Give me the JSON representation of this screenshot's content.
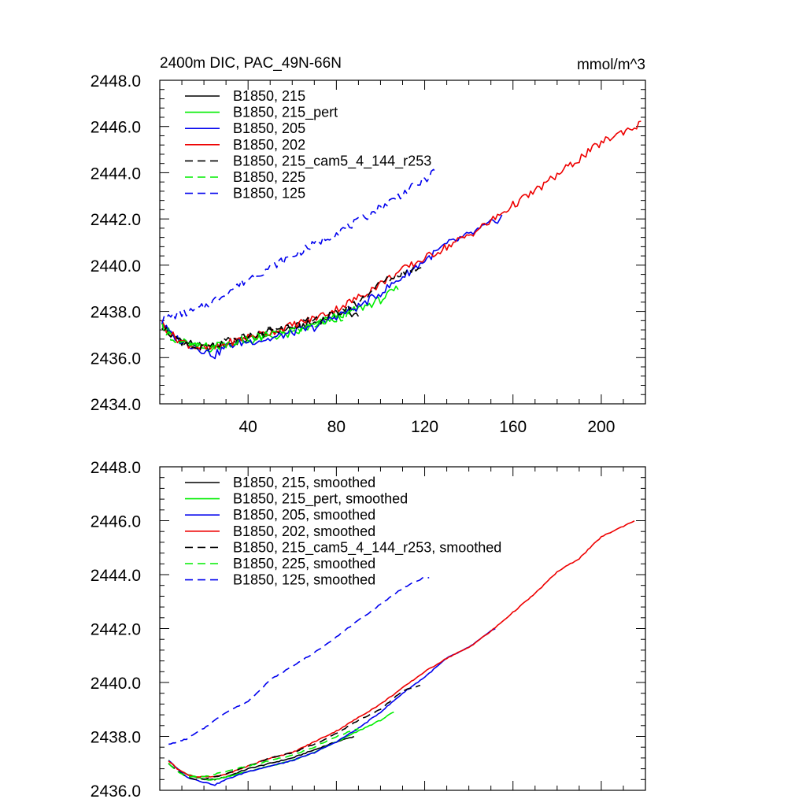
{
  "chart_data": [
    {
      "type": "line",
      "title": "2400m DIC, PAC_49N-66N",
      "units": "mmol/m^3",
      "xlim": [
        0,
        220
      ],
      "ylim": [
        2434,
        2448
      ],
      "x_major_ticks": [
        40,
        80,
        120,
        160,
        200
      ],
      "y_major_ticks": [
        2434,
        2436,
        2438,
        2440,
        2442,
        2444,
        2446,
        2448
      ],
      "x_tick_labels": [
        "40",
        "80",
        "120",
        "160",
        "200"
      ],
      "y_tick_labels": [
        "2434.0",
        "2436.0",
        "2438.0",
        "2440.0",
        "2442.0",
        "2444.0",
        "2446.0",
        "2448.0"
      ],
      "grid": false,
      "legend_position": "top-left",
      "series": [
        {
          "name": "B1850, 215",
          "color": "#000000",
          "dash": "solid",
          "noisy": true,
          "x": [
            1,
            5,
            10,
            15,
            20,
            25,
            30,
            40,
            50,
            60,
            70,
            80,
            90
          ],
          "y": [
            2437.5,
            2437.0,
            2436.7,
            2436.6,
            2436.4,
            2436.5,
            2436.6,
            2436.8,
            2437.1,
            2437.3,
            2437.5,
            2437.9,
            2437.9
          ]
        },
        {
          "name": "B1850, 215_pert",
          "color": "#00ee00",
          "dash": "solid",
          "noisy": true,
          "x": [
            1,
            5,
            10,
            15,
            20,
            25,
            30,
            40,
            50,
            60,
            70,
            80,
            90,
            100,
            108
          ],
          "y": [
            2437.5,
            2437.0,
            2436.7,
            2436.5,
            2436.4,
            2436.4,
            2436.6,
            2436.7,
            2436.9,
            2437.0,
            2437.4,
            2437.8,
            2438.1,
            2438.5,
            2439.0
          ]
        },
        {
          "name": "B1850, 205",
          "color": "#0000ee",
          "dash": "solid",
          "noisy": true,
          "x": [
            1,
            5,
            10,
            15,
            20,
            25,
            30,
            40,
            50,
            60,
            70,
            80,
            90,
            100,
            110,
            120,
            130,
            140,
            150,
            155
          ],
          "y": [
            2437.5,
            2437.0,
            2436.7,
            2436.5,
            2436.3,
            2436.1,
            2436.5,
            2436.7,
            2436.8,
            2437.1,
            2437.3,
            2437.8,
            2438.2,
            2438.8,
            2439.5,
            2440.2,
            2440.9,
            2441.3,
            2441.8,
            2442.1
          ]
        },
        {
          "name": "B1850, 202",
          "color": "#ee0000",
          "dash": "solid",
          "noisy": true,
          "x": [
            1,
            5,
            10,
            15,
            20,
            25,
            30,
            40,
            50,
            60,
            70,
            80,
            90,
            100,
            110,
            120,
            130,
            140,
            150,
            160,
            170,
            180,
            190,
            200,
            210,
            218
          ],
          "y": [
            2437.5,
            2437.0,
            2436.7,
            2436.5,
            2436.4,
            2436.4,
            2436.6,
            2436.9,
            2437.1,
            2437.4,
            2437.7,
            2438.1,
            2438.6,
            2439.2,
            2439.8,
            2440.3,
            2440.8,
            2441.3,
            2441.9,
            2442.6,
            2443.2,
            2443.9,
            2444.6,
            2445.3,
            2445.8,
            2446.1
          ]
        },
        {
          "name": "B1850, 215_cam5_4_144_r253",
          "color": "#000000",
          "dash": "dashed",
          "noisy": true,
          "x": [
            1,
            5,
            10,
            15,
            20,
            25,
            30,
            40,
            50,
            60,
            70,
            80,
            90,
            100,
            110,
            120
          ],
          "y": [
            2437.4,
            2437.0,
            2436.6,
            2436.4,
            2436.4,
            2436.5,
            2436.7,
            2436.9,
            2437.2,
            2437.4,
            2437.6,
            2437.9,
            2438.4,
            2439.2,
            2439.7,
            2440.0
          ]
        },
        {
          "name": "B1850, 225",
          "color": "#00ee00",
          "dash": "dashed",
          "noisy": true,
          "x": [
            1,
            5,
            10,
            15,
            20,
            25,
            30,
            40,
            50,
            60,
            70,
            80,
            88
          ],
          "y": [
            2437.4,
            2436.9,
            2436.6,
            2436.5,
            2436.5,
            2436.5,
            2436.6,
            2436.8,
            2437.0,
            2437.2,
            2437.4,
            2437.7,
            2437.9
          ]
        },
        {
          "name": "B1850, 125",
          "color": "#0000ee",
          "dash": "dashed",
          "noisy": true,
          "x": [
            1,
            5,
            10,
            15,
            20,
            25,
            30,
            40,
            50,
            60,
            70,
            80,
            90,
            100,
            110,
            120,
            125
          ],
          "y": [
            2437.6,
            2437.8,
            2437.9,
            2438.0,
            2438.2,
            2438.5,
            2438.8,
            2439.4,
            2439.9,
            2440.4,
            2440.9,
            2441.4,
            2441.9,
            2442.5,
            2443.1,
            2443.7,
            2444.1
          ]
        }
      ]
    },
    {
      "type": "line",
      "title": "",
      "units": "",
      "xlim": [
        0,
        220
      ],
      "ylim": [
        2436,
        2448
      ],
      "x_major_ticks": [
        40,
        80,
        120,
        160,
        200
      ],
      "y_major_ticks": [
        2436,
        2438,
        2440,
        2442,
        2444,
        2446,
        2448
      ],
      "x_tick_labels": [],
      "y_tick_labels": [
        "2436.0",
        "2438.0",
        "2440.0",
        "2442.0",
        "2444.0",
        "2446.0",
        "2448.0"
      ],
      "grid": false,
      "legend_position": "top-left",
      "series": [
        {
          "name": "B1850, 215, smoothed",
          "color": "#000000",
          "dash": "solid",
          "noisy": false,
          "x": [
            4,
            8,
            12,
            16,
            20,
            25,
            30,
            40,
            50,
            60,
            70,
            80,
            88
          ],
          "y": [
            2437.1,
            2436.8,
            2436.6,
            2436.5,
            2436.4,
            2436.4,
            2436.5,
            2436.8,
            2437.0,
            2437.2,
            2437.5,
            2437.8,
            2438.0
          ]
        },
        {
          "name": "B1850, 215_pert, smoothed",
          "color": "#00ee00",
          "dash": "solid",
          "noisy": false,
          "x": [
            4,
            8,
            12,
            16,
            20,
            25,
            30,
            40,
            50,
            60,
            70,
            80,
            90,
            100,
            106
          ],
          "y": [
            2437.1,
            2436.8,
            2436.6,
            2436.5,
            2436.4,
            2436.4,
            2436.5,
            2436.7,
            2436.9,
            2437.1,
            2437.4,
            2437.8,
            2438.2,
            2438.6,
            2438.9
          ]
        },
        {
          "name": "B1850, 205, smoothed",
          "color": "#0000ee",
          "dash": "solid",
          "noisy": false,
          "x": [
            4,
            8,
            12,
            16,
            20,
            25,
            30,
            40,
            50,
            60,
            70,
            80,
            90,
            100,
            110,
            120,
            130,
            140,
            150,
            152
          ],
          "y": [
            2437.1,
            2436.8,
            2436.5,
            2436.4,
            2436.3,
            2436.2,
            2436.4,
            2436.7,
            2436.9,
            2437.1,
            2437.4,
            2437.8,
            2438.3,
            2438.9,
            2439.6,
            2440.2,
            2440.9,
            2441.3,
            2441.9,
            2442.0
          ]
        },
        {
          "name": "B1850, 202, smoothed",
          "color": "#ee0000",
          "dash": "solid",
          "noisy": false,
          "x": [
            4,
            8,
            12,
            16,
            20,
            25,
            30,
            40,
            50,
            60,
            70,
            80,
            90,
            100,
            110,
            120,
            130,
            140,
            150,
            160,
            170,
            180,
            190,
            200,
            210,
            215
          ],
          "y": [
            2437.1,
            2436.8,
            2436.6,
            2436.5,
            2436.5,
            2436.5,
            2436.6,
            2436.9,
            2437.2,
            2437.4,
            2437.8,
            2438.2,
            2438.7,
            2439.2,
            2439.8,
            2440.4,
            2440.9,
            2441.3,
            2441.9,
            2442.6,
            2443.3,
            2444.1,
            2444.6,
            2445.4,
            2445.8,
            2446.0
          ]
        },
        {
          "name": "B1850, 215_cam5_4_144_r253, smoothed",
          "color": "#000000",
          "dash": "dashed",
          "noisy": false,
          "x": [
            4,
            8,
            12,
            16,
            20,
            25,
            30,
            40,
            50,
            60,
            70,
            80,
            90,
            100,
            110,
            118
          ],
          "y": [
            2437.0,
            2436.7,
            2436.5,
            2436.4,
            2436.4,
            2436.5,
            2436.6,
            2436.9,
            2437.2,
            2437.4,
            2437.7,
            2438.1,
            2438.6,
            2439.0,
            2439.7,
            2439.9
          ]
        },
        {
          "name": "B1850, 225, smoothed",
          "color": "#00ee00",
          "dash": "dashed",
          "noisy": false,
          "x": [
            4,
            8,
            12,
            16,
            20,
            25,
            30,
            40,
            50,
            60,
            70,
            80,
            90
          ],
          "y": [
            2437.0,
            2436.7,
            2436.5,
            2436.5,
            2436.5,
            2436.6,
            2436.7,
            2436.9,
            2437.1,
            2437.3,
            2437.6,
            2438.0,
            2438.3
          ]
        },
        {
          "name": "B1850, 125, smoothed",
          "color": "#0000ee",
          "dash": "dashed",
          "noisy": false,
          "x": [
            4,
            8,
            12,
            16,
            20,
            25,
            30,
            40,
            50,
            60,
            70,
            80,
            90,
            100,
            110,
            120,
            122
          ],
          "y": [
            2437.7,
            2437.8,
            2437.9,
            2438.1,
            2438.3,
            2438.6,
            2438.9,
            2439.3,
            2440.1,
            2440.6,
            2441.1,
            2441.7,
            2442.3,
            2442.9,
            2443.5,
            2443.9,
            2443.9
          ]
        }
      ]
    }
  ]
}
